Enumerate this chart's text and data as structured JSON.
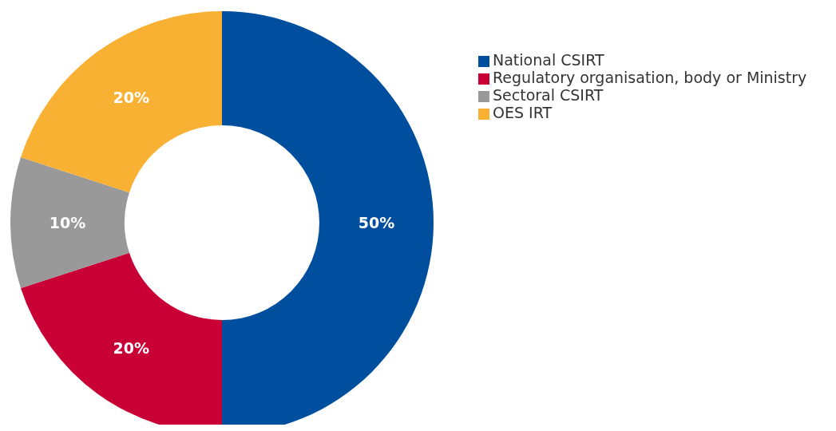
{
  "chart_data": {
    "type": "donut",
    "categories": [
      "National CSIRT",
      "Regulatory organisation, body or Ministry",
      "Sectoral CSIRT",
      "OES IRT"
    ],
    "values": [
      50,
      20,
      10,
      20
    ],
    "colors": [
      "#004f9f",
      "#c90035",
      "#999999",
      "#f8b133"
    ],
    "value_labels": [
      "50%",
      "20%",
      "10%",
      "20%"
    ],
    "legend": "top right"
  }
}
